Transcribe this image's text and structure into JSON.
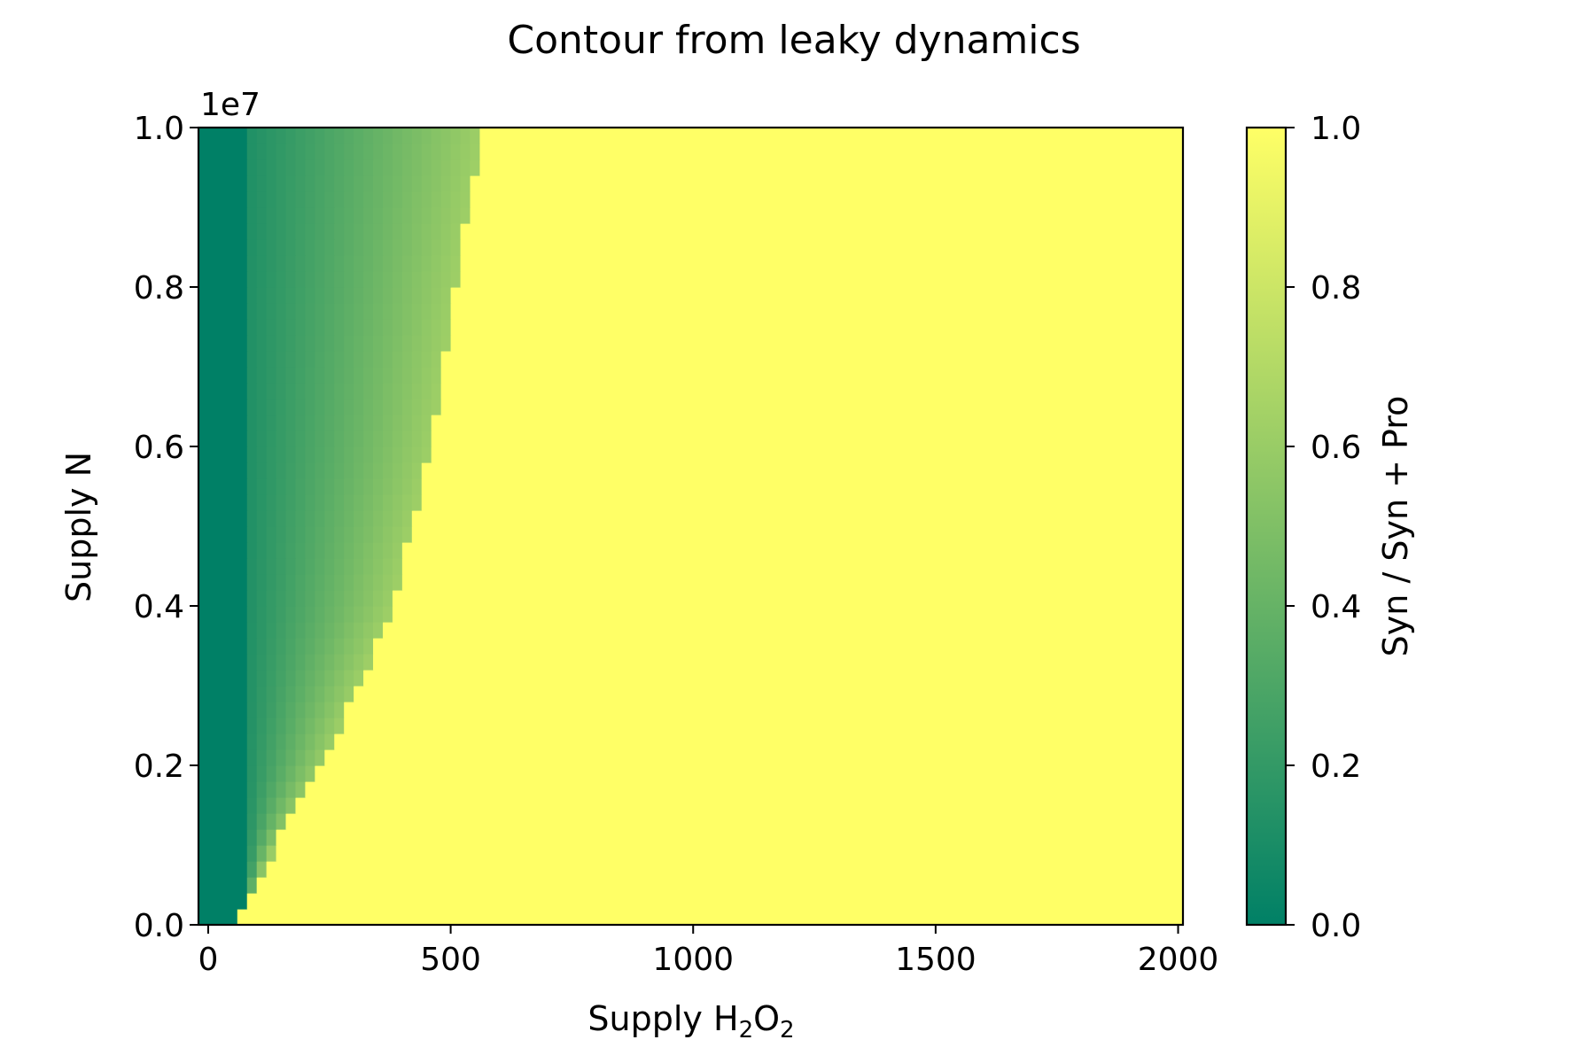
{
  "chart_data": {
    "type": "heatmap",
    "title": "Contour from leaky dynamics",
    "xlabel": {
      "base": "Supply H",
      "sub1": "2",
      "mid": "O",
      "sub2": "2"
    },
    "ylabel": "Supply N",
    "y_offset_label": "1e7",
    "xlim": [
      -20,
      2010
    ],
    "ylim": [
      0,
      10000000
    ],
    "x_ticks": [
      {
        "value": 0,
        "label": "0"
      },
      {
        "value": 500,
        "label": "500"
      },
      {
        "value": 1000,
        "label": "1000"
      },
      {
        "value": 1500,
        "label": "1500"
      },
      {
        "value": 2000,
        "label": "2000"
      }
    ],
    "y_ticks": [
      {
        "value": 0,
        "label": "0.0"
      },
      {
        "value": 2000000,
        "label": "0.2"
      },
      {
        "value": 4000000,
        "label": "0.4"
      },
      {
        "value": 6000000,
        "label": "0.6"
      },
      {
        "value": 8000000,
        "label": "0.8"
      },
      {
        "value": 10000000,
        "label": "1.0"
      }
    ],
    "colorbar": {
      "label": "Syn / Syn + Pro",
      "range": [
        0,
        1
      ],
      "ticks": [
        {
          "value": 0,
          "label": "0.0"
        },
        {
          "value": 0.2,
          "label": "0.2"
        },
        {
          "value": 0.4,
          "label": "0.4"
        },
        {
          "value": 0.6,
          "label": "0.6"
        },
        {
          "value": 0.8,
          "label": "0.8"
        },
        {
          "value": 1.0,
          "label": "1.0"
        }
      ],
      "colormap": "summer",
      "stops": [
        "#008066",
        "#ffff66"
      ]
    },
    "grid": false,
    "field": {
      "description_of_values": "fraction is ~0 at low H2O2 and rises to 1 at a boundary H2O2 that grows with Supply N",
      "boundary_h2o2": [
        {
          "n": 0,
          "h2o2": 60
        },
        {
          "n": 1000000,
          "h2o2": 140
        },
        {
          "n": 2000000,
          "h2o2": 240
        },
        {
          "n": 4000000,
          "h2o2": 380
        },
        {
          "n": 6000000,
          "h2o2": 460
        },
        {
          "n": 8000000,
          "h2o2": 510
        },
        {
          "n": 10000000,
          "h2o2": 565
        }
      ],
      "dark_band_h2o2": 80
    }
  }
}
